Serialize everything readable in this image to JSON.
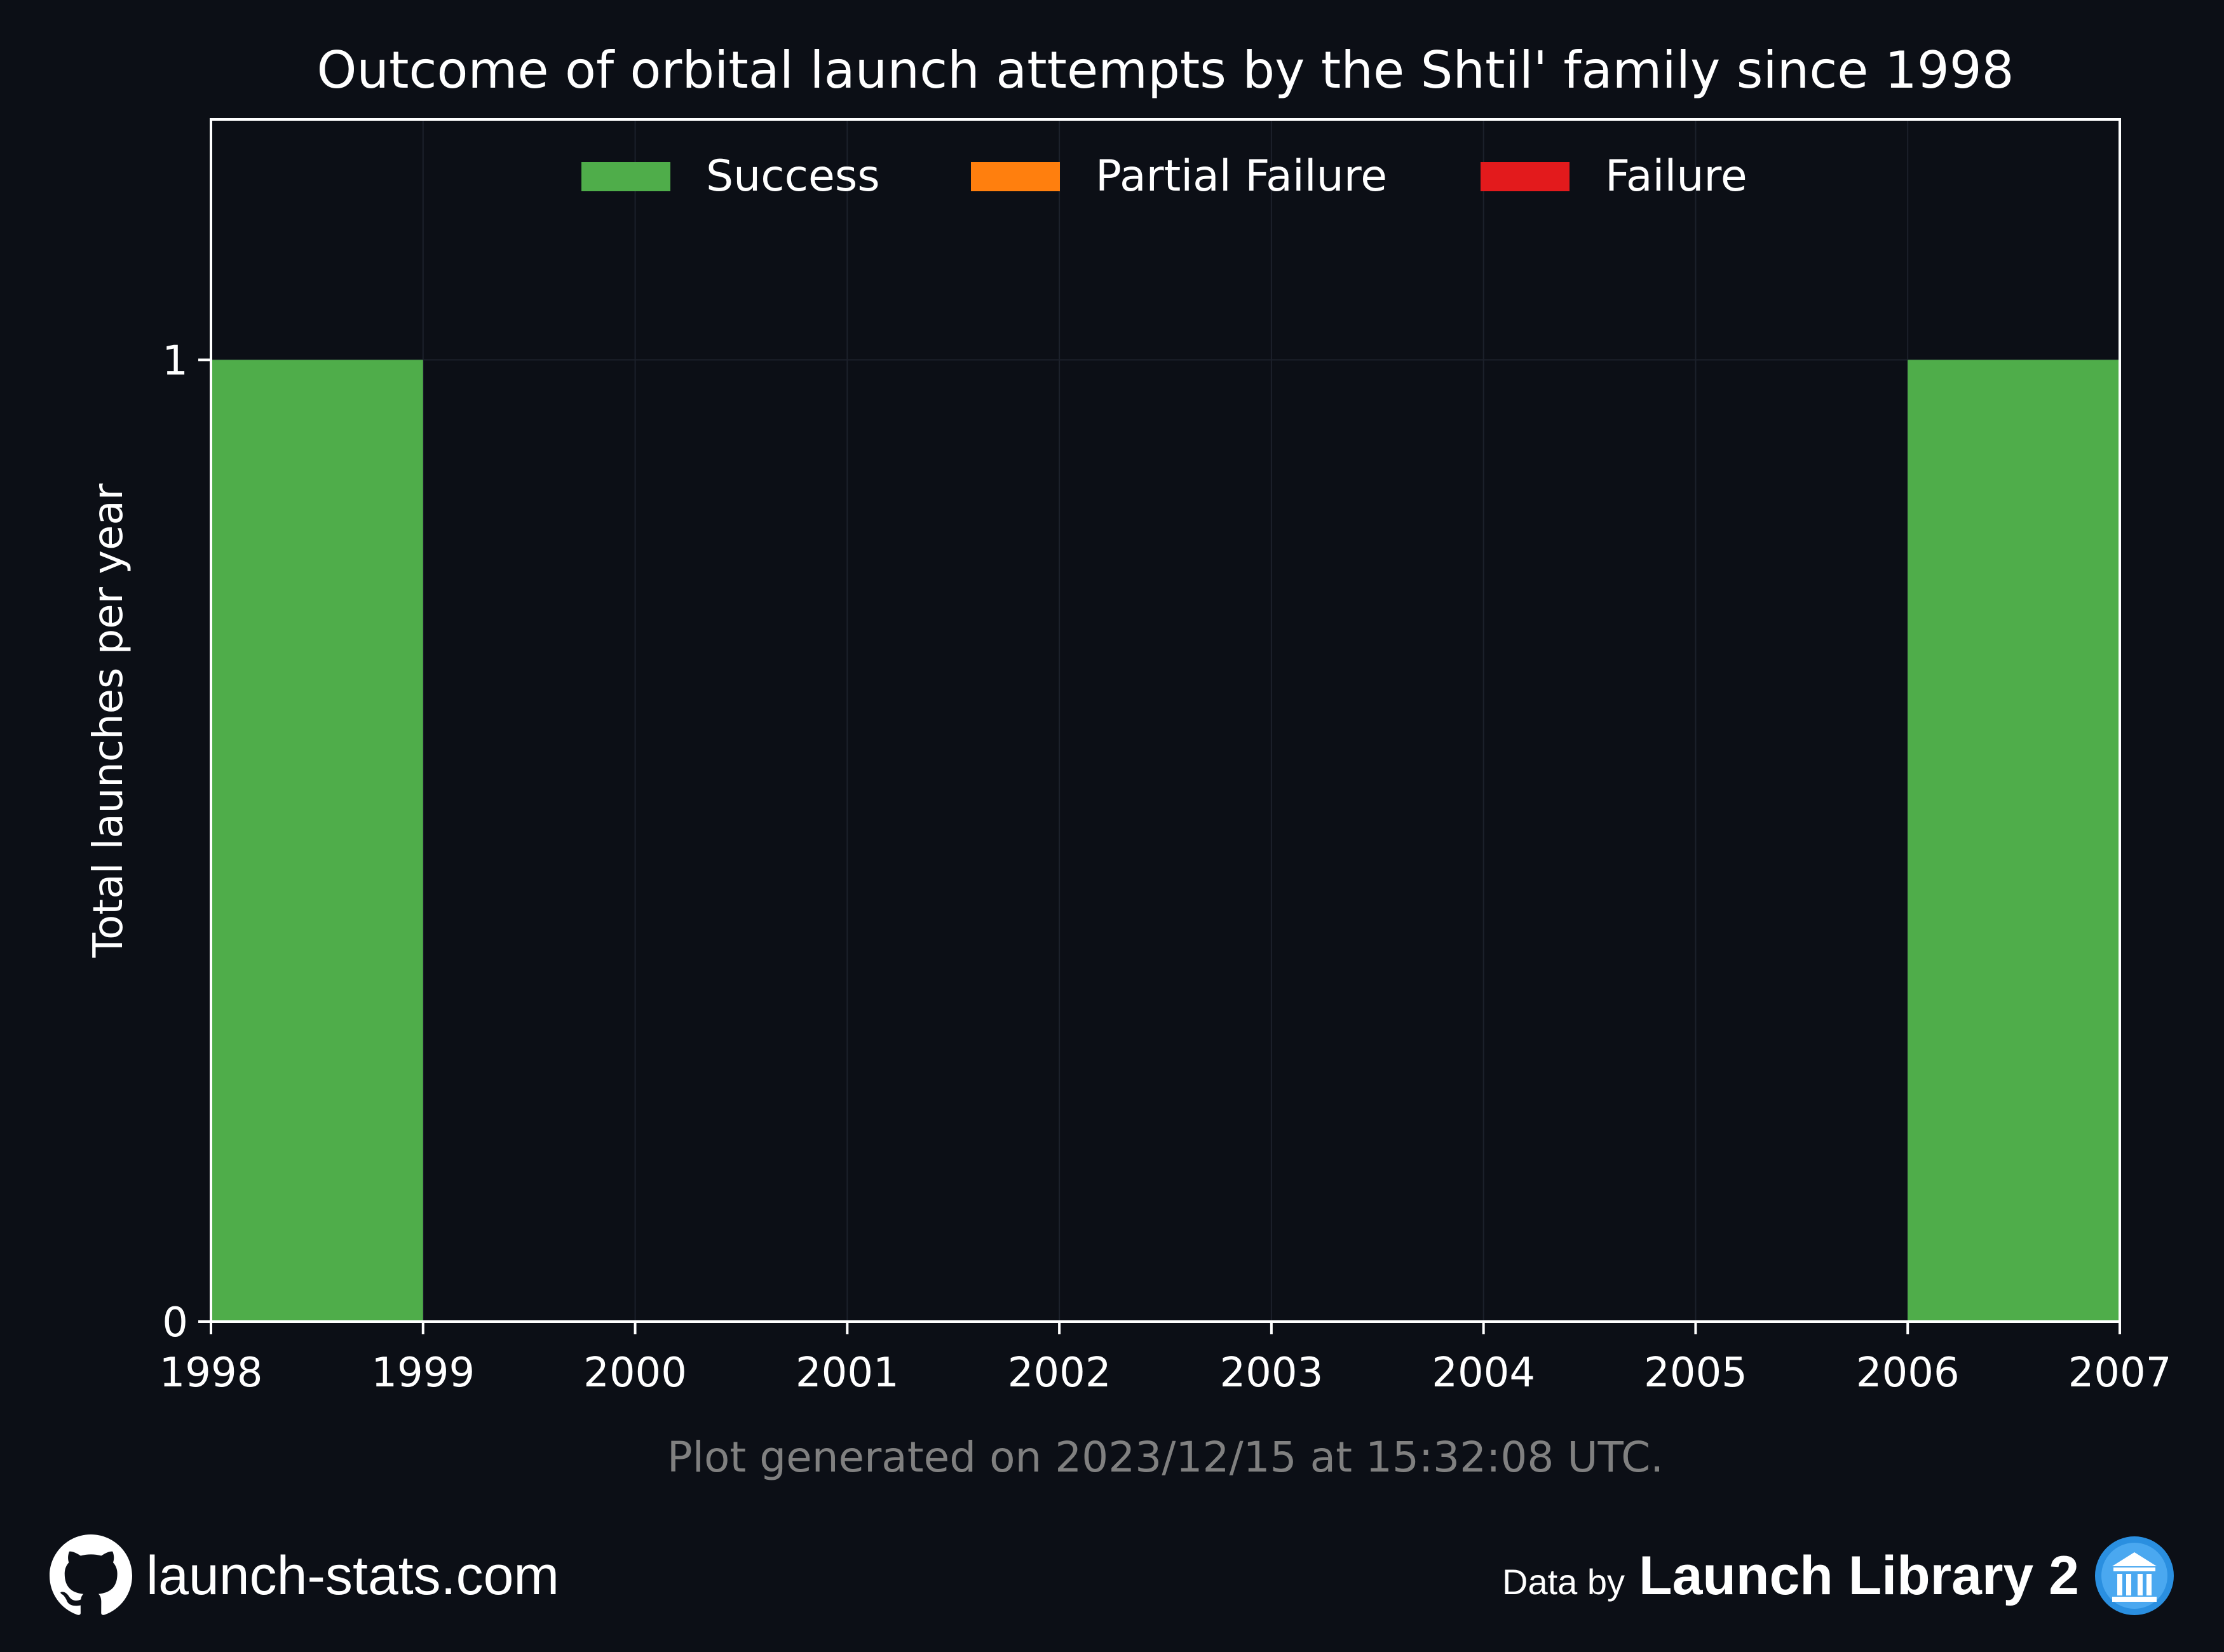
{
  "chart_data": {
    "type": "bar",
    "title": "Outcome of orbital launch attempts by the Shtil' family since 1998",
    "xlabel": "",
    "ylabel": "Total launches per year",
    "x_ticks": [
      "1998",
      "1999",
      "2000",
      "2001",
      "2002",
      "2003",
      "2004",
      "2005",
      "2006",
      "2007"
    ],
    "y_ticks": [
      "0",
      "1"
    ],
    "xlim": [
      1998,
      2007
    ],
    "ylim": [
      0,
      1.25
    ],
    "categories": [
      "1998",
      "1999",
      "2000",
      "2001",
      "2002",
      "2003",
      "2004",
      "2005",
      "2006"
    ],
    "stacked": true,
    "series": [
      {
        "name": "Success",
        "color": "#4fad4a",
        "values": [
          1,
          0,
          0,
          0,
          0,
          0,
          0,
          0,
          1
        ]
      },
      {
        "name": "Partial Failure",
        "color": "#ff7f0e",
        "values": [
          0,
          0,
          0,
          0,
          0,
          0,
          0,
          0,
          0
        ]
      },
      {
        "name": "Failure",
        "color": "#e31a1c",
        "values": [
          0,
          0,
          0,
          0,
          0,
          0,
          0,
          0,
          0
        ]
      }
    ],
    "legend": "top-center",
    "grid": true,
    "footnote": "Plot generated on 2023/12/15 at 15:32:08 UTC."
  },
  "footer": {
    "site": "launch-stats.com",
    "data_by": "Data by",
    "source": "Launch Library 2",
    "left_icon": "github-icon",
    "right_icon": "launch-library-icon"
  },
  "colors": {
    "background": "#0c0f16",
    "axes": "#ffffff",
    "grid": "#1c212b",
    "footnote": "#808080"
  }
}
